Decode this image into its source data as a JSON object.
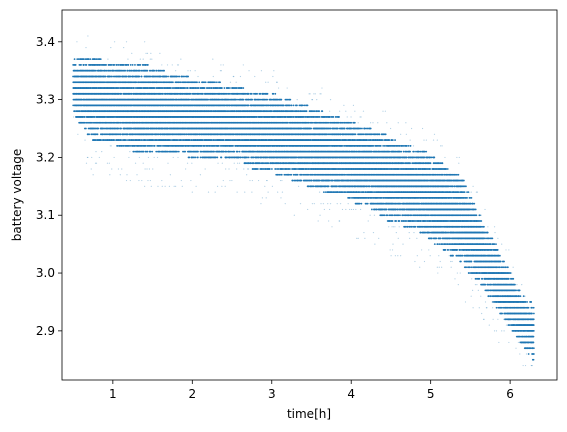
{
  "chart_data": {
    "type": "scatter",
    "xlabel": "time[h]",
    "ylabel": "battery voltage",
    "xlim": [
      0.36,
      6.59
    ],
    "ylim": [
      2.815,
      3.455
    ],
    "xticks": [
      1,
      2,
      3,
      4,
      5,
      6
    ],
    "xtick_labels": [
      "1",
      "2",
      "3",
      "4",
      "5",
      "6"
    ],
    "yticks": [
      2.9,
      3.0,
      3.1,
      3.2,
      3.3,
      3.4
    ],
    "ytick_labels": [
      "2.9",
      "3.0",
      "3.1",
      "3.2",
      "3.3",
      "3.4"
    ],
    "grid": false,
    "legend": false,
    "marker_color": "#1f77b4",
    "voltage_quantum": 0.01,
    "series": [
      {
        "x": [
          0.5,
          0.6,
          0.7,
          0.8,
          0.9,
          1.0,
          1.1,
          1.2,
          1.3,
          1.4,
          1.5,
          1.6,
          1.7,
          1.8,
          1.9,
          2.0,
          2.1,
          2.2,
          2.3,
          2.4,
          2.5,
          2.6,
          2.7,
          2.8,
          2.9,
          3.0,
          3.1,
          3.2,
          3.3,
          3.4,
          3.5,
          3.6,
          3.7,
          3.8,
          3.9,
          4.0,
          4.1,
          4.2,
          4.3,
          4.4,
          4.5,
          4.6,
          4.7,
          4.8,
          4.9,
          5.0,
          5.1,
          5.2,
          5.3,
          5.4,
          5.5,
          5.6,
          5.7,
          5.8,
          5.9,
          6.0,
          6.1,
          6.2,
          6.3
        ],
        "y_upper": [
          3.36,
          3.37,
          3.37,
          3.37,
          3.36,
          3.36,
          3.36,
          3.36,
          3.36,
          3.36,
          3.35,
          3.35,
          3.34,
          3.34,
          3.34,
          3.33,
          3.33,
          3.33,
          3.33,
          3.32,
          3.32,
          3.32,
          3.31,
          3.31,
          3.31,
          3.31,
          3.3,
          3.3,
          3.29,
          3.29,
          3.28,
          3.28,
          3.27,
          3.27,
          3.26,
          3.26,
          3.25,
          3.25,
          3.24,
          3.24,
          3.23,
          3.22,
          3.22,
          3.21,
          3.21,
          3.2,
          3.19,
          3.18,
          3.17,
          3.16,
          3.13,
          3.1,
          3.07,
          3.05,
          3.02,
          3.0,
          2.97,
          2.95,
          2.94
        ],
        "y_lower": [
          3.28,
          3.26,
          3.24,
          3.23,
          3.23,
          3.23,
          3.22,
          3.22,
          3.21,
          3.21,
          3.21,
          3.21,
          3.21,
          3.21,
          3.21,
          3.2,
          3.2,
          3.2,
          3.2,
          3.2,
          3.2,
          3.2,
          3.19,
          3.18,
          3.18,
          3.18,
          3.17,
          3.17,
          3.16,
          3.16,
          3.15,
          3.15,
          3.14,
          3.14,
          3.14,
          3.13,
          3.12,
          3.12,
          3.11,
          3.1,
          3.09,
          3.09,
          3.08,
          3.08,
          3.07,
          3.06,
          3.05,
          3.04,
          3.03,
          3.02,
          3.0,
          2.99,
          2.97,
          2.95,
          2.93,
          2.91,
          2.89,
          2.87,
          2.85
        ],
        "y_min_outlier": 2.84,
        "y_max_outlier": 3.41
      }
    ]
  }
}
